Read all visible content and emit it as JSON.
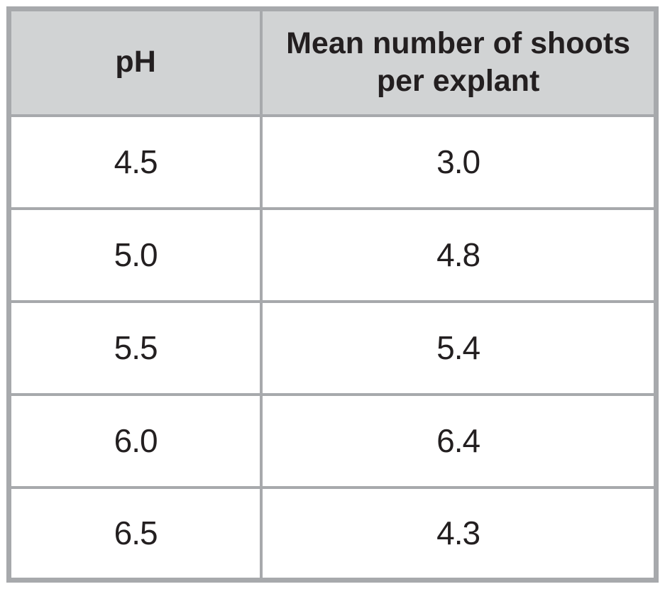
{
  "table": {
    "columns": [
      {
        "label": "pH"
      },
      {
        "label": "Mean number of shoots per explant"
      }
    ],
    "rows": [
      {
        "ph": "4.5",
        "shoots": "3.0"
      },
      {
        "ph": "5.0",
        "shoots": "4.8"
      },
      {
        "ph": "5.5",
        "shoots": "5.4"
      },
      {
        "ph": "6.0",
        "shoots": "6.4"
      },
      {
        "ph": "6.5",
        "shoots": "4.3"
      }
    ]
  },
  "colors": {
    "border": "#a7a9ac",
    "header_background": "#d1d3d4",
    "text": "#231f20",
    "background": "#ffffff"
  },
  "chart_data": {
    "type": "table",
    "columns": [
      "pH",
      "Mean number of shoots per explant"
    ],
    "categories": [
      4.5,
      5.0,
      5.5,
      6.0,
      6.5
    ],
    "values": [
      3.0,
      4.8,
      5.4,
      6.4,
      4.3
    ],
    "xlabel": "pH",
    "ylabel": "Mean number of shoots per explant",
    "title": "",
    "legend": false,
    "grid": true
  }
}
